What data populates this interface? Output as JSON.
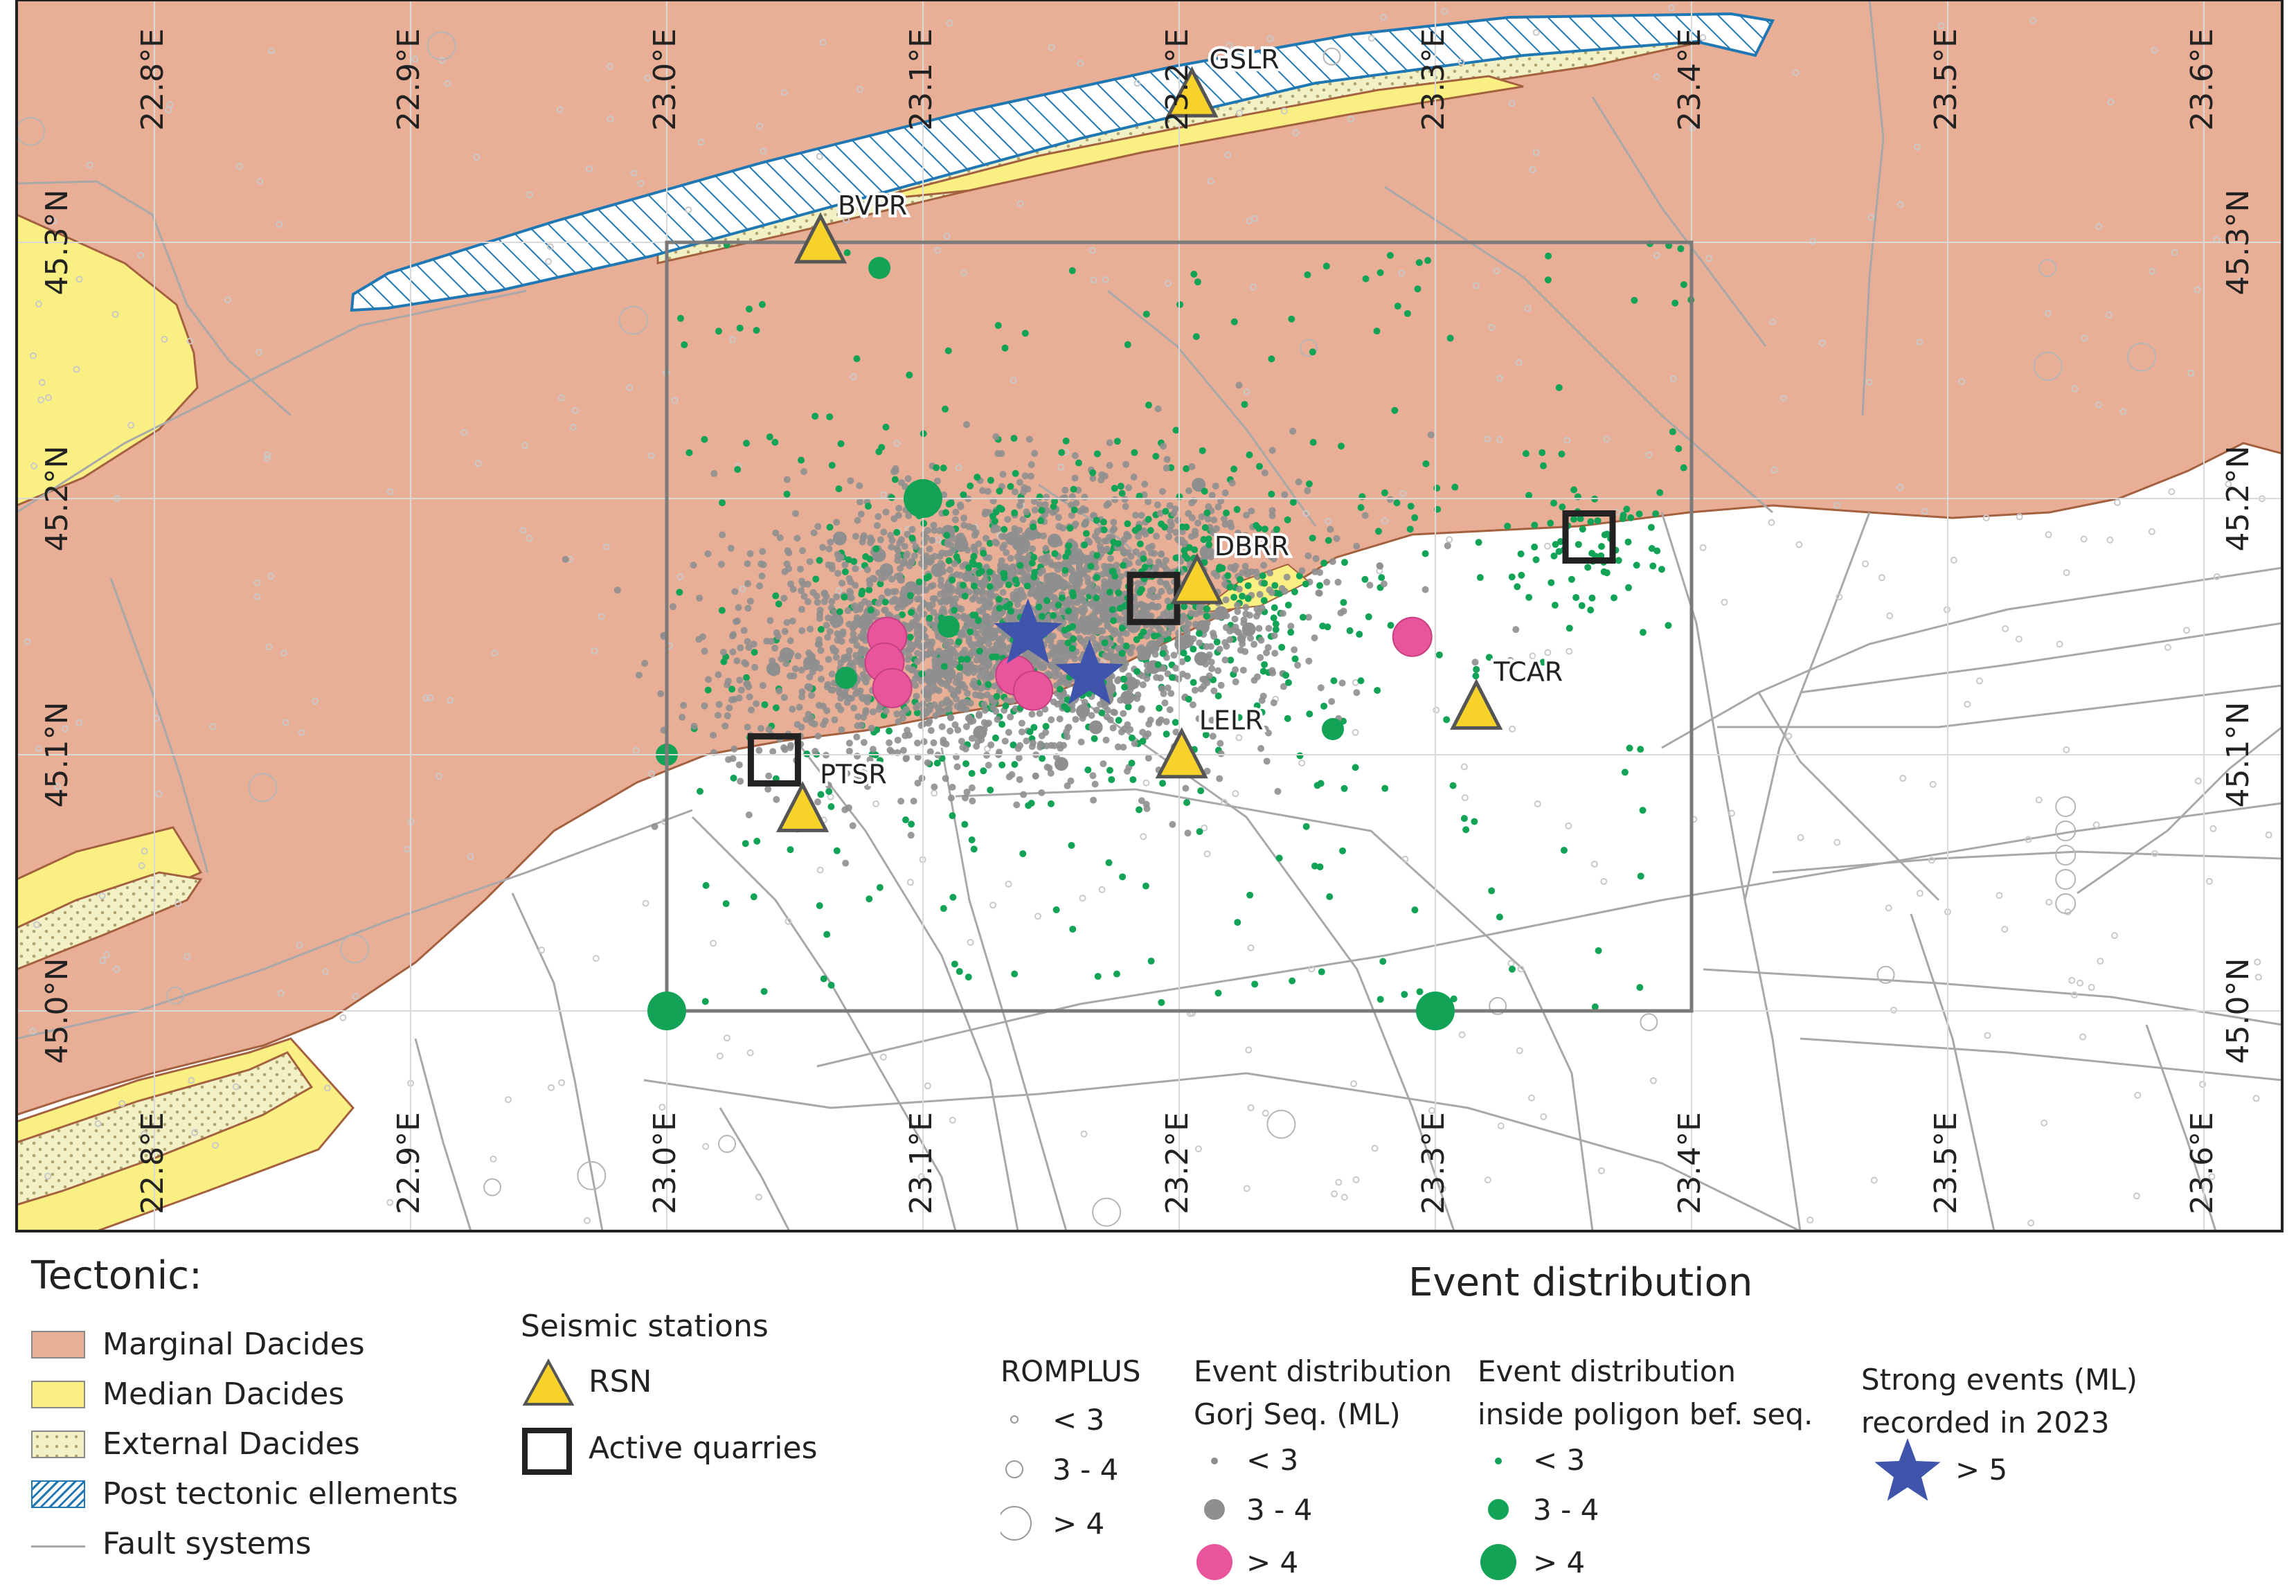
{
  "map": {
    "lon_labels": [
      "22.8°E",
      "22.9°E",
      "23.0°E",
      "23.1°E",
      "23.2°E",
      "23.3°E",
      "23.4°E",
      "23.5°E",
      "23.6°E"
    ],
    "lat_labels_top": [
      "45.3°N",
      "45.2°N",
      "45.1°N",
      "45.0°N"
    ],
    "lon_values": [
      22.8,
      22.9,
      23.0,
      23.1,
      23.2,
      23.3,
      23.4,
      23.5,
      23.6
    ],
    "lat_values": [
      45.3,
      45.2,
      45.1,
      45.0
    ],
    "polygon": {
      "lon": [
        23.0,
        23.4
      ],
      "lat": [
        45.0,
        45.3
      ]
    },
    "stations": [
      {
        "code": "GSLR",
        "lon": 23.205,
        "lat": 45.357
      },
      {
        "code": "BVPR",
        "lon": 23.06,
        "lat": 45.3
      },
      {
        "code": "DBRR",
        "lon": 23.207,
        "lat": 45.167
      },
      {
        "code": "TCAR",
        "lon": 23.316,
        "lat": 45.118
      },
      {
        "code": "LELR",
        "lon": 23.201,
        "lat": 45.099
      },
      {
        "code": "PTSR",
        "lon": 23.053,
        "lat": 45.078
      }
    ],
    "quarries": [
      {
        "lon": 23.042,
        "lat": 45.098
      },
      {
        "lon": 23.19,
        "lat": 45.161
      },
      {
        "lon": 23.36,
        "lat": 45.185
      }
    ],
    "strong_events": [
      {
        "lon": 23.141,
        "lat": 45.147
      },
      {
        "lon": 23.165,
        "lat": 45.131
      }
    ],
    "gorj_large_events": [
      {
        "lon": 23.086,
        "lat": 45.146
      },
      {
        "lon": 23.085,
        "lat": 45.136
      },
      {
        "lon": 23.088,
        "lat": 45.126
      },
      {
        "lon": 23.136,
        "lat": 45.131
      },
      {
        "lon": 23.143,
        "lat": 45.125
      },
      {
        "lon": 23.291,
        "lat": 45.146
      }
    ],
    "green_large_events": [
      {
        "lon": 23.1,
        "lat": 45.2
      },
      {
        "lon": 23.0,
        "lat": 45.0
      },
      {
        "lon": 23.3,
        "lat": 45.0
      }
    ],
    "colors": {
      "marginal": "#e8ae96",
      "median": "#f9ef82",
      "external": "#f2f1c6",
      "post_tectonic": "#1f78b4",
      "fault": "#a8a8a8",
      "station": "#f6d22b",
      "gorj": "#8f8f8f",
      "gorj_large": "#e8559c",
      "green": "#13a356",
      "star": "#3f54ab"
    }
  },
  "legend": {
    "tectonic_title": "Tectonic:",
    "tectonic_items": [
      "Marginal Dacides",
      "Median Dacides",
      "External Dacides",
      "Post tectonic ellements",
      "Fault systems"
    ],
    "stations_title": "Seismic stations",
    "stations_items": [
      "RSN",
      "Active quarries"
    ],
    "event_title": "Event distribution",
    "romplus": {
      "title": "ROMPLUS",
      "items": [
        "< 3",
        "3 - 4",
        "> 4"
      ]
    },
    "gorj": {
      "title_line1": "Event distribution",
      "title_line2": "Gorj Seq. (ML)",
      "items": [
        "< 3",
        "3 - 4",
        "> 4"
      ]
    },
    "inside": {
      "title_line1": "Event distribution",
      "title_line2": "inside poligon bef. seq.",
      "items": [
        "< 3",
        "3 - 4",
        "> 4"
      ]
    },
    "strong": {
      "title_line1": "Strong events (ML)",
      "title_line2": "recorded in 2023",
      "items": [
        "> 5"
      ]
    }
  }
}
